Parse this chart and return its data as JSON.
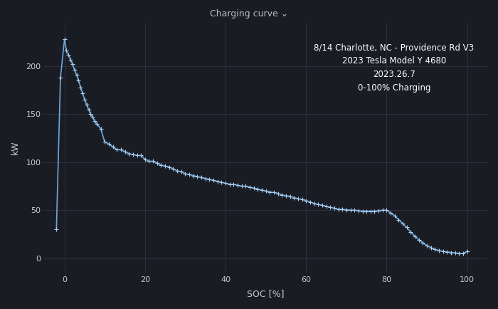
{
  "title": "Charging curve ⌄",
  "xlabel": "SOC [%]",
  "ylabel": "kW",
  "annotation": "8/14 Charlotte, NC - Providence Rd V3\n2023 Tesla Model Y 4680\n2023.26.7\n0-100% Charging",
  "bg_color": "#1a1c23",
  "grid_color": "#2e3040",
  "line_color": "#6ea8d8",
  "marker_color": "#aaccee",
  "text_color": "#cccccc",
  "title_color": "#bbbbbb",
  "xlim": [
    -5,
    105
  ],
  "ylim": [
    -15,
    245
  ],
  "xticks": [
    0,
    20,
    40,
    60,
    80,
    100
  ],
  "yticks": [
    0,
    50,
    100,
    150,
    200
  ],
  "soc": [
    -2.0,
    -1.0,
    0.0,
    0.5,
    1.0,
    1.5,
    2.0,
    2.5,
    3.0,
    3.5,
    4.0,
    4.5,
    5.0,
    5.5,
    6.0,
    6.5,
    7.0,
    7.5,
    8.0,
    9.0,
    10.0,
    11.0,
    12.0,
    13.0,
    14.0,
    15.0,
    16.0,
    17.0,
    18.0,
    19.0,
    20.0,
    21.0,
    22.0,
    23.0,
    24.0,
    25.0,
    26.0,
    27.0,
    28.0,
    29.0,
    30.0,
    31.0,
    32.0,
    33.0,
    34.0,
    35.0,
    36.0,
    37.0,
    38.0,
    39.0,
    40.0,
    41.0,
    42.0,
    43.0,
    44.0,
    45.0,
    46.0,
    47.0,
    48.0,
    49.0,
    50.0,
    51.0,
    52.0,
    53.0,
    54.0,
    55.0,
    56.0,
    57.0,
    58.0,
    59.0,
    60.0,
    61.0,
    62.0,
    63.0,
    64.0,
    65.0,
    66.0,
    67.0,
    68.0,
    69.0,
    70.0,
    71.0,
    72.0,
    73.0,
    74.0,
    75.0,
    76.0,
    77.0,
    78.0,
    79.0,
    80.0,
    81.0,
    82.0,
    83.0,
    84.0,
    85.0,
    86.0,
    87.0,
    88.0,
    89.0,
    90.0,
    91.0,
    92.0,
    93.0,
    94.0,
    95.0,
    96.0,
    97.0,
    98.0,
    99.0,
    100.0
  ],
  "kw": [
    30.0,
    188.0,
    228.0,
    216.0,
    212.0,
    207.0,
    202.0,
    196.0,
    191.0,
    185.0,
    178.0,
    172.0,
    165.0,
    160.0,
    155.0,
    150.0,
    147.0,
    143.0,
    140.0,
    135.0,
    121.0,
    119.0,
    116.0,
    113.0,
    113.0,
    111.0,
    109.0,
    108.0,
    107.0,
    107.0,
    103.0,
    101.0,
    101.0,
    99.0,
    97.0,
    96.0,
    95.0,
    93.0,
    91.0,
    90.0,
    88.0,
    87.0,
    86.0,
    85.0,
    84.0,
    83.0,
    82.0,
    81.0,
    80.0,
    79.0,
    78.0,
    77.0,
    77.0,
    76.0,
    75.0,
    75.0,
    74.0,
    73.0,
    72.0,
    71.0,
    70.0,
    69.0,
    68.5,
    67.5,
    66.0,
    65.0,
    64.5,
    63.0,
    62.0,
    61.0,
    60.0,
    58.5,
    57.0,
    56.0,
    55.0,
    54.0,
    53.0,
    52.0,
    51.0,
    51.0,
    50.5,
    50.0,
    50.0,
    49.5,
    49.0,
    49.0,
    49.0,
    49.0,
    49.5,
    50.0,
    50.0,
    47.0,
    44.0,
    40.0,
    36.0,
    32.0,
    27.0,
    23.0,
    19.0,
    16.0,
    13.0,
    11.0,
    9.0,
    8.0,
    7.0,
    6.5,
    6.0,
    5.5,
    5.0,
    5.0,
    7.0
  ]
}
